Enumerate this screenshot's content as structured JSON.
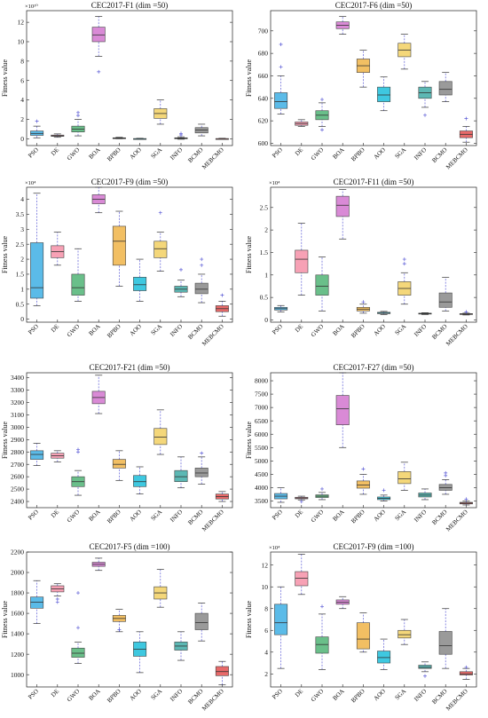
{
  "colors": [
    "#5bbbe8",
    "#f7a1b5",
    "#6abf8a",
    "#d98ad6",
    "#f2bf63",
    "#3ec8e0",
    "#f4d77a",
    "#5cb8b4",
    "#9a9a9a",
    "#e86a6a"
  ],
  "chart_data": [
    {
      "type": "box",
      "title": "CEC2017-F1 (dim =50)",
      "ylabel": "Fitness value",
      "exponent_label": "×10¹⁰",
      "scale": 10000000000,
      "ylim": [
        -0.7,
        13.2
      ],
      "yticks": [
        0,
        2,
        4,
        6,
        8,
        10,
        12
      ],
      "categories": [
        "PSO",
        "DE",
        "GWO",
        "BOA",
        "BPBO",
        "AOO",
        "SGA",
        "INFO",
        "BCMO",
        "MEBCMO"
      ],
      "boxes": [
        {
          "whislo": 0.1,
          "q1": 0.35,
          "med": 0.55,
          "q3": 0.8,
          "whishi": 1.3,
          "fliers": [
            1.8
          ]
        },
        {
          "whislo": 0.15,
          "q1": 0.25,
          "med": 0.3,
          "q3": 0.38,
          "whishi": 0.5,
          "fliers": []
        },
        {
          "whislo": 0.3,
          "q1": 0.7,
          "med": 1.0,
          "q3": 1.3,
          "whishi": 2.0,
          "fliers": [
            2.4,
            2.7
          ]
        },
        {
          "whislo": 8.5,
          "q1": 10.0,
          "med": 10.7,
          "q3": 11.5,
          "whishi": 12.6,
          "fliers": [
            6.9
          ]
        },
        {
          "whislo": 0.0,
          "q1": 0.03,
          "med": 0.06,
          "q3": 0.1,
          "whishi": 0.15,
          "fliers": []
        },
        {
          "whislo": -0.05,
          "q1": -0.02,
          "med": 0.0,
          "q3": 0.02,
          "whishi": 0.05,
          "fliers": []
        },
        {
          "whislo": 1.5,
          "q1": 2.1,
          "med": 2.6,
          "q3": 3.1,
          "whishi": 4.0,
          "fliers": []
        },
        {
          "whislo": -0.05,
          "q1": 0.0,
          "med": 0.05,
          "q3": 0.1,
          "whishi": 0.2,
          "fliers": [
            0.4,
            0.55
          ]
        },
        {
          "whislo": 0.3,
          "q1": 0.6,
          "med": 0.9,
          "q3": 1.15,
          "whishi": 1.5,
          "fliers": []
        },
        {
          "whislo": -0.05,
          "q1": -0.02,
          "med": 0.0,
          "q3": 0.02,
          "whishi": 0.05,
          "fliers": []
        }
      ]
    },
    {
      "type": "box",
      "title": "CEC2017-F6 (dim =50)",
      "ylabel": "Fitness value",
      "exponent_label": "",
      "scale": 1,
      "ylim": [
        598,
        718
      ],
      "yticks": [
        600,
        620,
        640,
        660,
        680,
        700
      ],
      "categories": [
        "PSO",
        "DE",
        "GWO",
        "BOA",
        "BPBO",
        "AOO",
        "SGA",
        "INFO",
        "BCMO",
        "MEBCMO"
      ],
      "boxes": [
        {
          "whislo": 626,
          "q1": 631,
          "med": 637,
          "q3": 645,
          "whishi": 660,
          "fliers": [
            668,
            688
          ]
        },
        {
          "whislo": 615,
          "q1": 616,
          "med": 617.5,
          "q3": 619,
          "whishi": 621,
          "fliers": []
        },
        {
          "whislo": 615,
          "q1": 621,
          "med": 625,
          "q3": 629,
          "whishi": 636,
          "fliers": [
            612,
            639
          ]
        },
        {
          "whislo": 697,
          "q1": 702,
          "med": 705,
          "q3": 708,
          "whishi": 713,
          "fliers": []
        },
        {
          "whislo": 650,
          "q1": 663,
          "med": 669,
          "q3": 675,
          "whishi": 683,
          "fliers": []
        },
        {
          "whislo": 629,
          "q1": 637,
          "med": 643,
          "q3": 650,
          "whishi": 659,
          "fliers": []
        },
        {
          "whislo": 666,
          "q1": 677,
          "med": 683,
          "q3": 689,
          "whishi": 697,
          "fliers": []
        },
        {
          "whislo": 632,
          "q1": 640,
          "med": 645,
          "q3": 650,
          "whishi": 655,
          "fliers": [
            625
          ]
        },
        {
          "whislo": 637,
          "q1": 643,
          "med": 648,
          "q3": 655,
          "whishi": 663,
          "fliers": []
        },
        {
          "whislo": 601,
          "q1": 605,
          "med": 608,
          "q3": 611,
          "whishi": 615,
          "fliers": [
            622
          ]
        }
      ]
    },
    {
      "type": "box",
      "title": "CEC2017-F9 (dim =50)",
      "ylabel": "Fitness value",
      "exponent_label": "×10⁴",
      "scale": 10000,
      "ylim": [
        -0.1,
        4.4
      ],
      "yticks": [
        0,
        0.5,
        1,
        1.5,
        2,
        2.5,
        3,
        3.5,
        4
      ],
      "categories": [
        "PSO",
        "DE",
        "GWO",
        "BOA",
        "BPBO",
        "AOO",
        "SGA",
        "INFO",
        "BCMO",
        "MEBCMO"
      ],
      "boxes": [
        {
          "whislo": 0.45,
          "q1": 0.7,
          "med": 1.05,
          "q3": 2.55,
          "whishi": 4.2,
          "fliers": []
        },
        {
          "whislo": 1.8,
          "q1": 2.05,
          "med": 2.25,
          "q3": 2.45,
          "whishi": 2.9,
          "fliers": []
        },
        {
          "whislo": 0.6,
          "q1": 0.8,
          "med": 1.05,
          "q3": 1.5,
          "whishi": 2.35,
          "fliers": []
        },
        {
          "whislo": 3.55,
          "q1": 3.85,
          "med": 4.0,
          "q3": 4.15,
          "whishi": 4.4,
          "fliers": []
        },
        {
          "whislo": 1.1,
          "q1": 1.8,
          "med": 2.6,
          "q3": 3.1,
          "whishi": 3.6,
          "fliers": []
        },
        {
          "whislo": 0.6,
          "q1": 0.95,
          "med": 1.15,
          "q3": 1.4,
          "whishi": 2.0,
          "fliers": []
        },
        {
          "whislo": 1.6,
          "q1": 2.05,
          "med": 2.35,
          "q3": 2.6,
          "whishi": 2.9,
          "fliers": [
            3.55
          ]
        },
        {
          "whislo": 0.75,
          "q1": 0.9,
          "med": 1.0,
          "q3": 1.1,
          "whishi": 1.3,
          "fliers": [
            1.65
          ]
        },
        {
          "whislo": 0.55,
          "q1": 0.85,
          "med": 1.0,
          "q3": 1.2,
          "whishi": 1.5,
          "fliers": [
            1.8,
            2.0
          ]
        },
        {
          "whislo": 0.1,
          "q1": 0.25,
          "med": 0.35,
          "q3": 0.45,
          "whishi": 0.6,
          "fliers": [
            0.8
          ]
        }
      ]
    },
    {
      "type": "box",
      "title": "CEC2017-F11 (dim =50)",
      "ylabel": "Fitness value",
      "exponent_label": "×10⁴",
      "scale": 10000,
      "ylim": [
        -0.05,
        2.95
      ],
      "yticks": [
        0,
        0.5,
        1,
        1.5,
        2,
        2.5
      ],
      "categories": [
        "PSO",
        "DE",
        "GWO",
        "BOA",
        "BPBO",
        "AOO",
        "SGA",
        "INFO",
        "BCMO",
        "MEBCMO"
      ],
      "boxes": [
        {
          "whislo": 0.18,
          "q1": 0.22,
          "med": 0.25,
          "q3": 0.28,
          "whishi": 0.32,
          "fliers": []
        },
        {
          "whislo": 0.55,
          "q1": 1.05,
          "med": 1.35,
          "q3": 1.55,
          "whishi": 2.15,
          "fliers": []
        },
        {
          "whislo": 0.2,
          "q1": 0.55,
          "med": 0.75,
          "q3": 1.0,
          "whishi": 1.4,
          "fliers": []
        },
        {
          "whislo": 1.8,
          "q1": 2.3,
          "med": 2.55,
          "q3": 2.75,
          "whishi": 2.9,
          "fliers": []
        },
        {
          "whislo": 0.15,
          "q1": 0.2,
          "med": 0.24,
          "q3": 0.28,
          "whishi": 0.35,
          "fliers": [
            0.4
          ]
        },
        {
          "whislo": 0.12,
          "q1": 0.14,
          "med": 0.15,
          "q3": 0.17,
          "whishi": 0.19,
          "fliers": []
        },
        {
          "whislo": 0.35,
          "q1": 0.55,
          "med": 0.7,
          "q3": 0.85,
          "whishi": 1.05,
          "fliers": [
            1.25,
            1.35
          ]
        },
        {
          "whislo": 0.12,
          "q1": 0.13,
          "med": 0.14,
          "q3": 0.15,
          "whishi": 0.16,
          "fliers": []
        },
        {
          "whislo": 0.2,
          "q1": 0.28,
          "med": 0.4,
          "q3": 0.6,
          "whishi": 0.95,
          "fliers": []
        },
        {
          "whislo": 0.11,
          "q1": 0.12,
          "med": 0.13,
          "q3": 0.14,
          "whishi": 0.15,
          "fliers": [
            0.18
          ]
        }
      ]
    },
    {
      "type": "box",
      "title": "CEC2017-F21 (dim =50)",
      "ylabel": "Fitness value",
      "exponent_label": "",
      "scale": 1,
      "ylim": [
        2350,
        3440
      ],
      "yticks": [
        2400,
        2500,
        2600,
        2700,
        2800,
        2900,
        3000,
        3100,
        3200,
        3300,
        3400
      ],
      "categories": [
        "PSO",
        "DE",
        "GWO",
        "BOA",
        "BPBO",
        "AOO",
        "SGA",
        "INFO",
        "BCMO",
        "MEBCMO"
      ],
      "boxes": [
        {
          "whislo": 2690,
          "q1": 2740,
          "med": 2780,
          "q3": 2810,
          "whishi": 2870,
          "fliers": []
        },
        {
          "whislo": 2720,
          "q1": 2750,
          "med": 2770,
          "q3": 2790,
          "whishi": 2810,
          "fliers": []
        },
        {
          "whislo": 2450,
          "q1": 2520,
          "med": 2560,
          "q3": 2600,
          "whishi": 2650,
          "fliers": [
            2800,
            2820
          ]
        },
        {
          "whislo": 3110,
          "q1": 3190,
          "med": 3240,
          "q3": 3290,
          "whishi": 3420,
          "fliers": []
        },
        {
          "whislo": 2570,
          "q1": 2670,
          "med": 2700,
          "q3": 2740,
          "whishi": 2810,
          "fliers": []
        },
        {
          "whislo": 2460,
          "q1": 2520,
          "med": 2560,
          "q3": 2610,
          "whishi": 2680,
          "fliers": []
        },
        {
          "whislo": 2780,
          "q1": 2860,
          "med": 2920,
          "q3": 2990,
          "whishi": 3140,
          "fliers": []
        },
        {
          "whislo": 2510,
          "q1": 2560,
          "med": 2600,
          "q3": 2650,
          "whishi": 2760,
          "fliers": []
        },
        {
          "whislo": 2540,
          "q1": 2600,
          "med": 2630,
          "q3": 2670,
          "whishi": 2760,
          "fliers": [
            2790
          ]
        },
        {
          "whislo": 2400,
          "q1": 2420,
          "med": 2440,
          "q3": 2460,
          "whishi": 2480,
          "fliers": []
        }
      ]
    },
    {
      "type": "box",
      "title": "CEC2017-F27 (dim =50)",
      "ylabel": "Fitness value",
      "exponent_label": "",
      "scale": 1,
      "ylim": [
        3250,
        8300
      ],
      "yticks": [
        3500,
        4000,
        4500,
        5000,
        5500,
        6000,
        6500,
        7000,
        7500,
        8000
      ],
      "categories": [
        "PSO",
        "DE",
        "GWO",
        "BOA",
        "BPBO",
        "AOO",
        "SGA",
        "INFO",
        "BCMO",
        "MEBCMO"
      ],
      "boxes": [
        {
          "whislo": 3450,
          "q1": 3580,
          "med": 3680,
          "q3": 3780,
          "whishi": 4000,
          "fliers": []
        },
        {
          "whislo": 3540,
          "q1": 3580,
          "med": 3610,
          "q3": 3640,
          "whishi": 3680,
          "fliers": [
            3480
          ]
        },
        {
          "whislo": 3550,
          "q1": 3630,
          "med": 3680,
          "q3": 3730,
          "whishi": 3820,
          "fliers": [
            3950
          ]
        },
        {
          "whislo": 5500,
          "q1": 6350,
          "med": 6950,
          "q3": 7450,
          "whishi": 8300,
          "fliers": []
        },
        {
          "whislo": 3750,
          "q1": 3980,
          "med": 4100,
          "q3": 4250,
          "whishi": 4500,
          "fliers": [
            4700
          ]
        },
        {
          "whislo": 3500,
          "q1": 3550,
          "med": 3600,
          "q3": 3650,
          "whishi": 3720,
          "fliers": [
            3900
          ]
        },
        {
          "whislo": 3900,
          "q1": 4150,
          "med": 4330,
          "q3": 4600,
          "whishi": 4950,
          "fliers": []
        },
        {
          "whislo": 3550,
          "q1": 3650,
          "med": 3720,
          "q3": 3800,
          "whishi": 3950,
          "fliers": []
        },
        {
          "whislo": 3750,
          "q1": 3900,
          "med": 4000,
          "q3": 4120,
          "whishi": 4300,
          "fliers": [
            4450,
            4550
          ]
        },
        {
          "whislo": 3350,
          "q1": 3390,
          "med": 3420,
          "q3": 3450,
          "whishi": 3500,
          "fliers": [
            3570
          ]
        }
      ]
    },
    {
      "type": "box",
      "title": "CEC2017-F5 (dim =100)",
      "ylabel": "Fitness value",
      "exponent_label": "",
      "scale": 1,
      "ylim": [
        880,
        2200
      ],
      "yticks": [
        1000,
        1200,
        1400,
        1600,
        1800,
        2000,
        2200
      ],
      "categories": [
        "PSO",
        "DE",
        "GWO",
        "BOA",
        "BPBO",
        "AOO",
        "SGA",
        "INFO",
        "BCMO",
        "MEBCMO"
      ],
      "boxes": [
        {
          "whislo": 1500,
          "q1": 1650,
          "med": 1710,
          "q3": 1760,
          "whishi": 1920,
          "fliers": []
        },
        {
          "whislo": 1770,
          "q1": 1810,
          "med": 1840,
          "q3": 1870,
          "whishi": 1890,
          "fliers": [
            1710,
            1740
          ]
        },
        {
          "whislo": 1110,
          "q1": 1170,
          "med": 1210,
          "q3": 1260,
          "whishi": 1320,
          "fliers": [
            1460,
            1800
          ]
        },
        {
          "whislo": 2020,
          "q1": 2060,
          "med": 2080,
          "q3": 2100,
          "whishi": 2140,
          "fliers": []
        },
        {
          "whislo": 1420,
          "q1": 1520,
          "med": 1550,
          "q3": 1580,
          "whishi": 1640,
          "fliers": [
            1440
          ]
        },
        {
          "whislo": 1020,
          "q1": 1180,
          "med": 1250,
          "q3": 1320,
          "whishi": 1420,
          "fliers": []
        },
        {
          "whislo": 1660,
          "q1": 1740,
          "med": 1800,
          "q3": 1860,
          "whishi": 2030,
          "fliers": []
        },
        {
          "whislo": 1140,
          "q1": 1240,
          "med": 1280,
          "q3": 1320,
          "whishi": 1420,
          "fliers": []
        },
        {
          "whislo": 1330,
          "q1": 1440,
          "med": 1510,
          "q3": 1600,
          "whishi": 1700,
          "fliers": []
        },
        {
          "whislo": 900,
          "q1": 990,
          "med": 1030,
          "q3": 1080,
          "whishi": 1130,
          "fliers": []
        }
      ]
    },
    {
      "type": "box",
      "title": "CEC2017-F9 (dim =100)",
      "ylabel": "Fitness value",
      "exponent_label": "×10⁴",
      "scale": 10000,
      "ylim": [
        0.8,
        13.2
      ],
      "yticks": [
        2,
        4,
        6,
        8,
        10,
        12
      ],
      "categories": [
        "PSO",
        "DE",
        "GWO",
        "BOA",
        "BPBO",
        "AOO",
        "SGA",
        "INFO",
        "BCMO",
        "MEBCMO"
      ],
      "boxes": [
        {
          "whislo": 2.5,
          "q1": 5.6,
          "med": 6.7,
          "q3": 8.4,
          "whishi": 10.0,
          "fliers": []
        },
        {
          "whislo": 9.3,
          "q1": 10.1,
          "med": 10.8,
          "q3": 11.4,
          "whishi": 13.0,
          "fliers": []
        },
        {
          "whislo": 2.4,
          "q1": 3.9,
          "med": 4.7,
          "q3": 5.4,
          "whishi": 7.5,
          "fliers": [
            8.2
          ]
        },
        {
          "whislo": 8.0,
          "q1": 8.4,
          "med": 8.6,
          "q3": 8.8,
          "whishi": 9.1,
          "fliers": []
        },
        {
          "whislo": 4.0,
          "q1": 4.3,
          "med": 5.2,
          "q3": 6.7,
          "whishi": 7.6,
          "fliers": []
        },
        {
          "whislo": 2.4,
          "q1": 3.0,
          "med": 3.5,
          "q3": 4.1,
          "whishi": 5.2,
          "fliers": []
        },
        {
          "whislo": 4.7,
          "q1": 5.3,
          "med": 5.6,
          "q3": 6.0,
          "whishi": 7.0,
          "fliers": []
        },
        {
          "whislo": 2.2,
          "q1": 2.5,
          "med": 2.6,
          "q3": 2.8,
          "whishi": 3.1,
          "fliers": [
            1.8
          ]
        },
        {
          "whislo": 2.5,
          "q1": 3.8,
          "med": 4.6,
          "q3": 5.9,
          "whishi": 8.0,
          "fliers": []
        },
        {
          "whislo": 1.5,
          "q1": 1.9,
          "med": 2.0,
          "q3": 2.2,
          "whishi": 2.5,
          "fliers": [
            2.6
          ]
        }
      ]
    }
  ]
}
